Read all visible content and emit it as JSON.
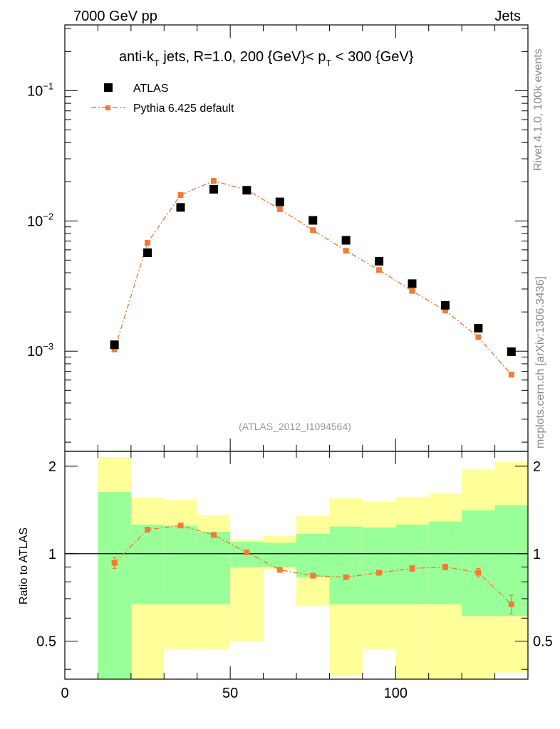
{
  "header": {
    "left": "7000 GeV pp",
    "right": "Jets",
    "side_rivet": "Rivet 4.1.0,  100k events",
    "side_mcplots": "mcplots.cern.ch [arXiv:1306.3436]"
  },
  "title": {
    "prefix": "anti-k",
    "sub_t": "T",
    "middle": " jets, R=1.0, 200 {GeV}< p",
    "sub_t2": "T",
    "suffix": " < 300 {GeV}"
  },
  "legend": {
    "data_label": "ATLAS",
    "mc_label": "Pythia 6.425 default"
  },
  "analysis_id": "(ATLAS_2012_I1094564)",
  "ratio_ylabel": "Ratio to ATLAS",
  "colors": {
    "mc": "#f47a33",
    "band_inner": "#99ff99",
    "band_outer": "#ffff99",
    "data": "#000000"
  },
  "chart_data": {
    "type": "scatter",
    "main": {
      "yscale": "log",
      "ylim": [
        0.00017,
        0.32
      ],
      "xlim": [
        0,
        140
      ],
      "y_tick_labels": [
        "10",
        "10",
        "10"
      ],
      "y_tick_exponents": [
        "−3",
        "−2",
        "−1"
      ],
      "y_tick_values": [
        0.001,
        0.01,
        0.1
      ],
      "x": [
        15,
        25,
        35,
        45,
        55,
        65,
        75,
        85,
        95,
        105,
        115,
        125,
        135
      ],
      "series": [
        {
          "name": "ATLAS",
          "values": [
            0.00112,
            0.0057,
            0.0127,
            0.0175,
            0.0172,
            0.014,
            0.0101,
            0.0071,
            0.0049,
            0.0033,
            0.00225,
            0.0015,
            0.00099
          ]
        },
        {
          "name": "Pythia 6.425 default",
          "values": [
            0.00103,
            0.0068,
            0.0158,
            0.0203,
            0.0173,
            0.0123,
            0.0085,
            0.0059,
            0.0042,
            0.0029,
            0.00205,
            0.00128,
            0.00066
          ]
        }
      ]
    },
    "ratio": {
      "ylim": [
        0.37,
        2.25
      ],
      "y_tick_labels": [
        "0.5",
        "1",
        "2"
      ],
      "y_tick_values": [
        0.5,
        1,
        2
      ],
      "x_tick_labels": [
        "0",
        "50",
        "100"
      ],
      "x_tick_values": [
        0,
        50,
        100
      ],
      "bins": [
        [
          10,
          20
        ],
        [
          20,
          30
        ],
        [
          30,
          40
        ],
        [
          40,
          50
        ],
        [
          50,
          60
        ],
        [
          60,
          70
        ],
        [
          70,
          80
        ],
        [
          80,
          90
        ],
        [
          90,
          100
        ],
        [
          100,
          110
        ],
        [
          110,
          120
        ],
        [
          120,
          130
        ],
        [
          130,
          140
        ]
      ],
      "band_inner_low": [
        0.37,
        0.67,
        0.67,
        0.67,
        0.9,
        0.9,
        0.83,
        0.67,
        0.67,
        0.67,
        0.67,
        0.61,
        0.61
      ],
      "band_inner_high": [
        1.63,
        1.26,
        1.25,
        1.19,
        1.1,
        1.09,
        1.17,
        1.24,
        1.23,
        1.26,
        1.29,
        1.41,
        1.47
      ],
      "band_outer_low": [
        0.37,
        0.37,
        0.47,
        0.47,
        0.5,
        0.88,
        0.66,
        0.38,
        0.47,
        0.37,
        0.37,
        0.37,
        0.39
      ],
      "band_outer_high": [
        2.15,
        1.56,
        1.53,
        1.36,
        1.12,
        1.15,
        1.35,
        1.55,
        1.51,
        1.57,
        1.62,
        1.95,
        2.07
      ],
      "mc_ratio": [
        0.93,
        1.21,
        1.25,
        1.16,
        1.01,
        0.88,
        0.84,
        0.83,
        0.86,
        0.89,
        0.9,
        0.86,
        0.67
      ],
      "mc_ratio_err": [
        0.04,
        0.02,
        0.02,
        0.02,
        0.01,
        0.01,
        0.01,
        0.01,
        0.01,
        0.02,
        0.02,
        0.03,
        0.05
      ]
    }
  }
}
